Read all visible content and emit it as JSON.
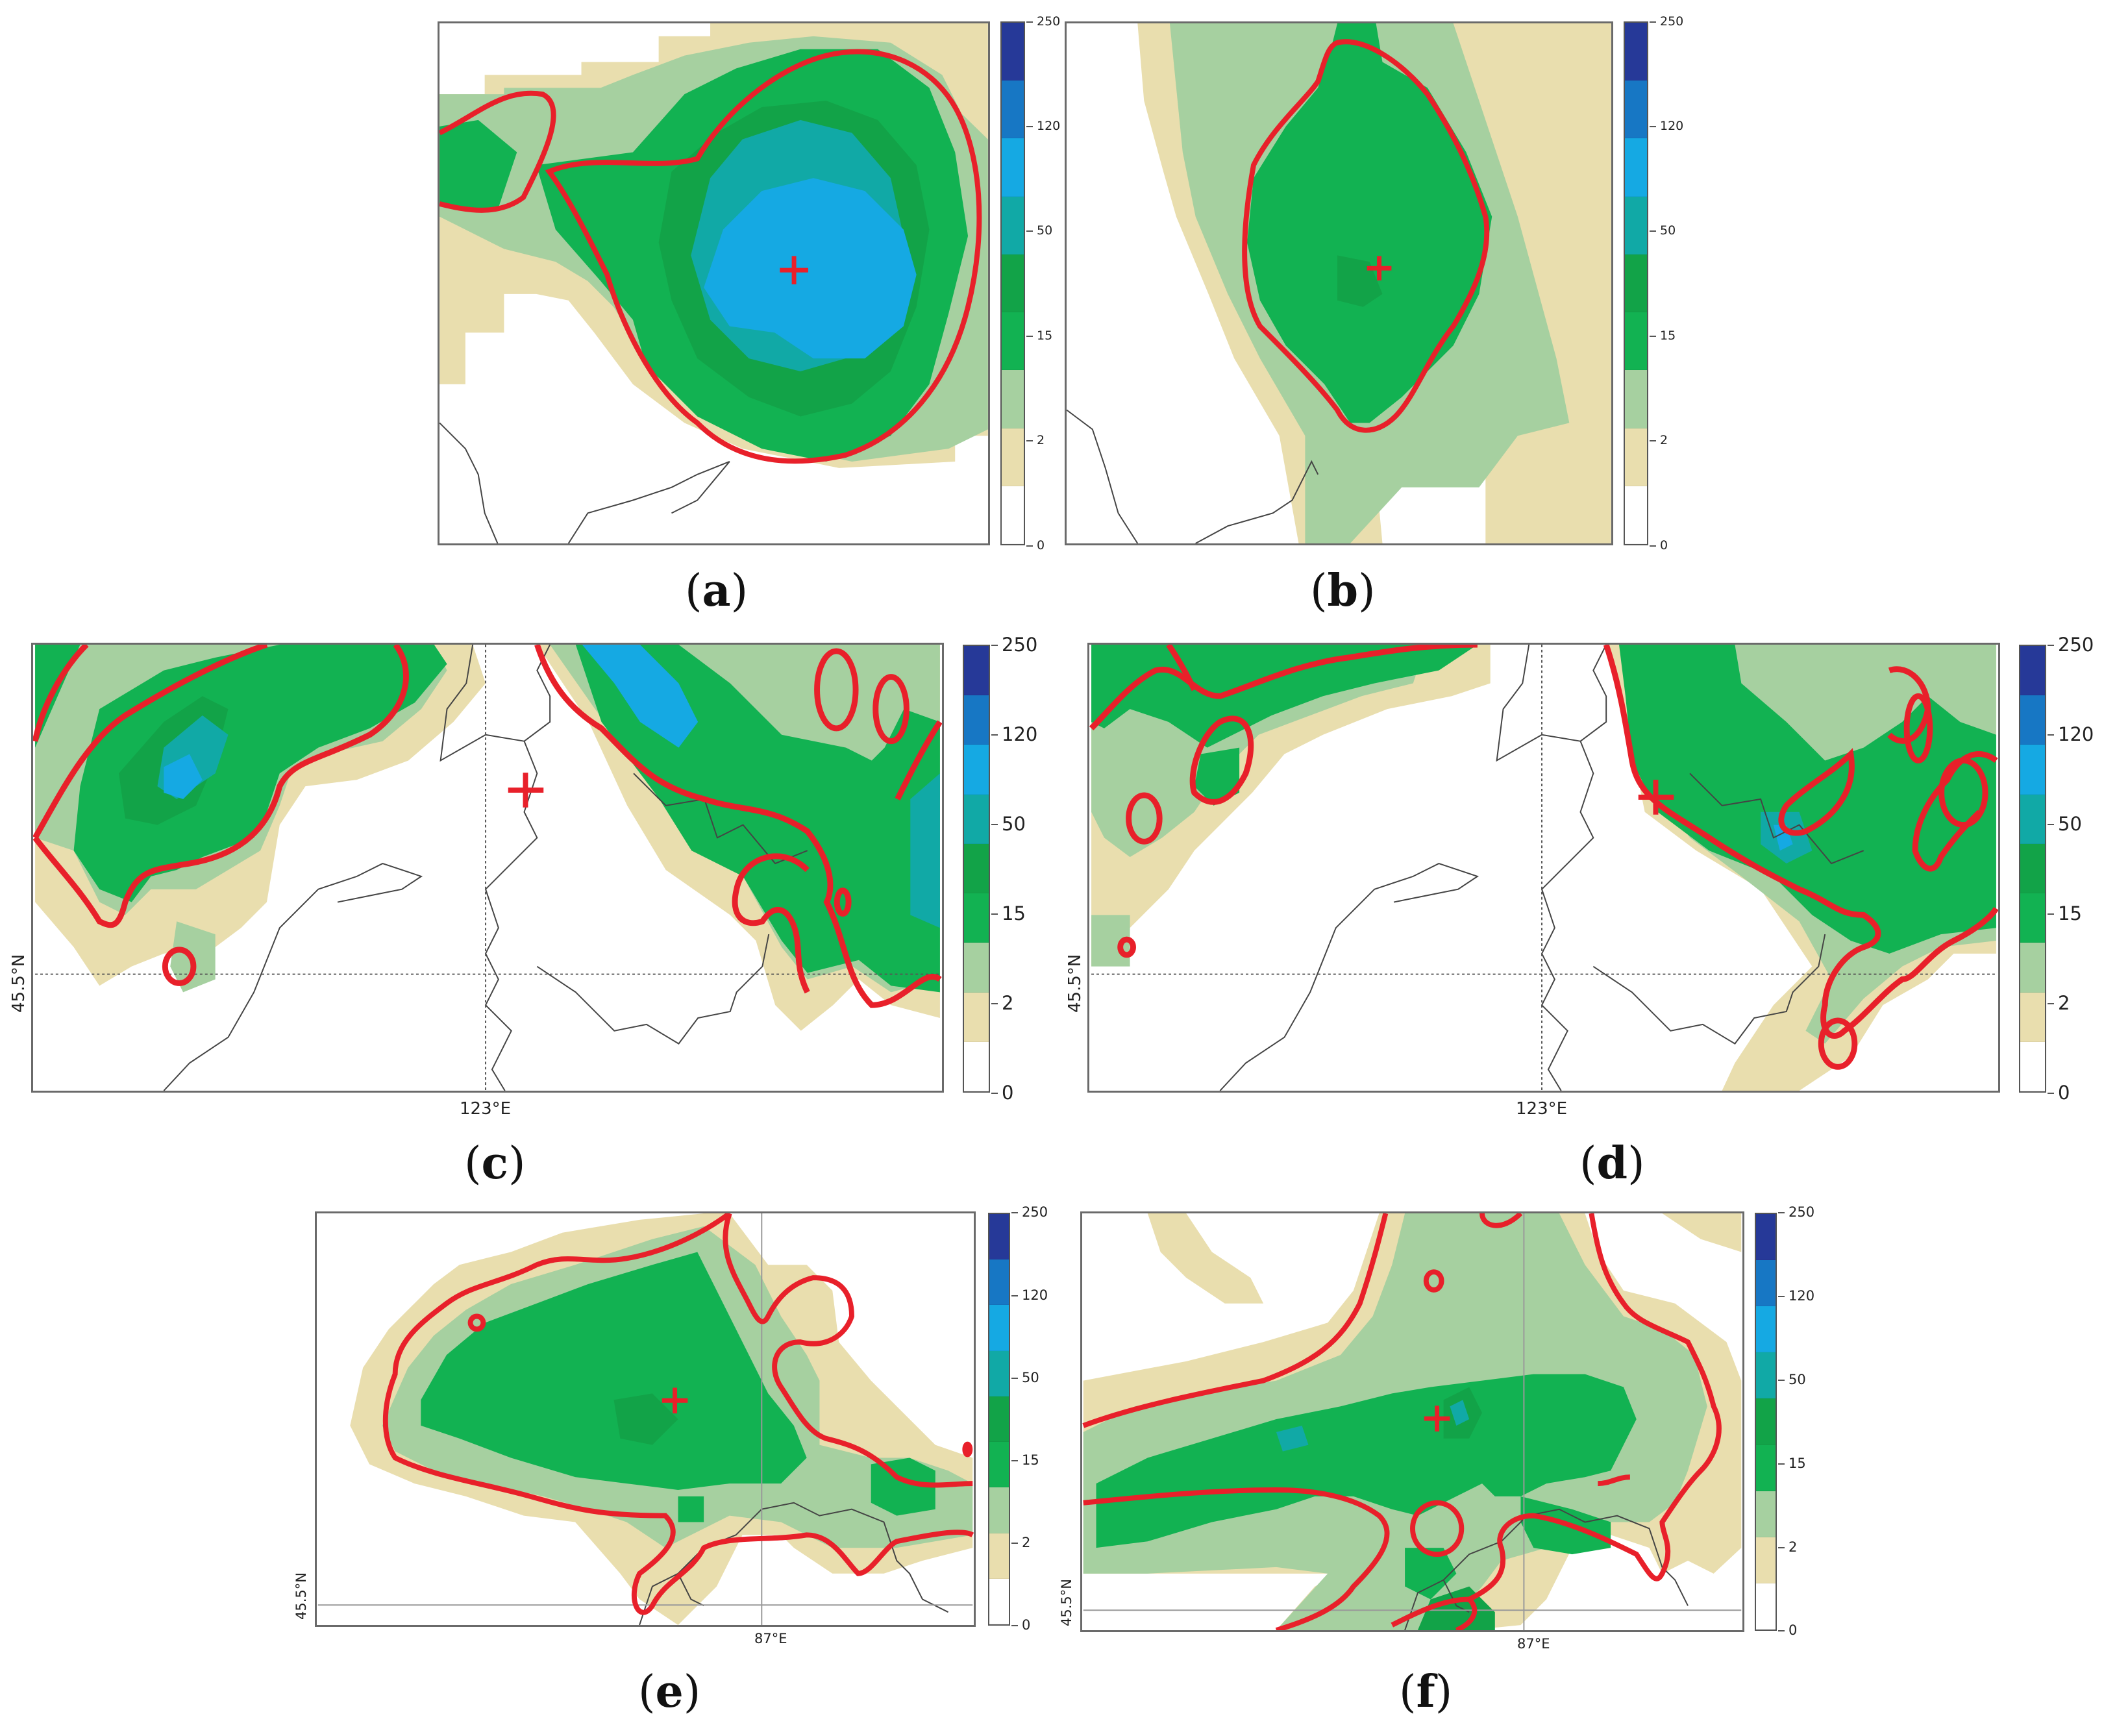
{
  "figure": {
    "colorbar_ticks": [
      "250",
      "120",
      "50",
      "15",
      "2",
      "0"
    ],
    "colorbar_colors": [
      "#263998",
      "#1777c4",
      "#15a9e3",
      "#11a9a6",
      "#12a348",
      "#12b252",
      "#a6d0a0",
      "#e9deae",
      "#ffffff"
    ],
    "contour_color": "#e8202a",
    "marker_color": "#e8202a",
    "panels": [
      {
        "id": "a",
        "caption": "a",
        "lat_label": "",
        "lon_label": ""
      },
      {
        "id": "b",
        "caption": "b",
        "lat_label": "",
        "lon_label": ""
      },
      {
        "id": "c",
        "caption": "c",
        "lat_label": "45.5°N",
        "lon_label": "123°E"
      },
      {
        "id": "d",
        "caption": "d",
        "lat_label": "45.5°N",
        "lon_label": "123°E"
      },
      {
        "id": "e",
        "caption": "e",
        "lat_label": "45.5°N",
        "lon_label": "87°E"
      },
      {
        "id": "f",
        "caption": "f",
        "lat_label": "45.5°N",
        "lon_label": "87°E"
      }
    ]
  }
}
